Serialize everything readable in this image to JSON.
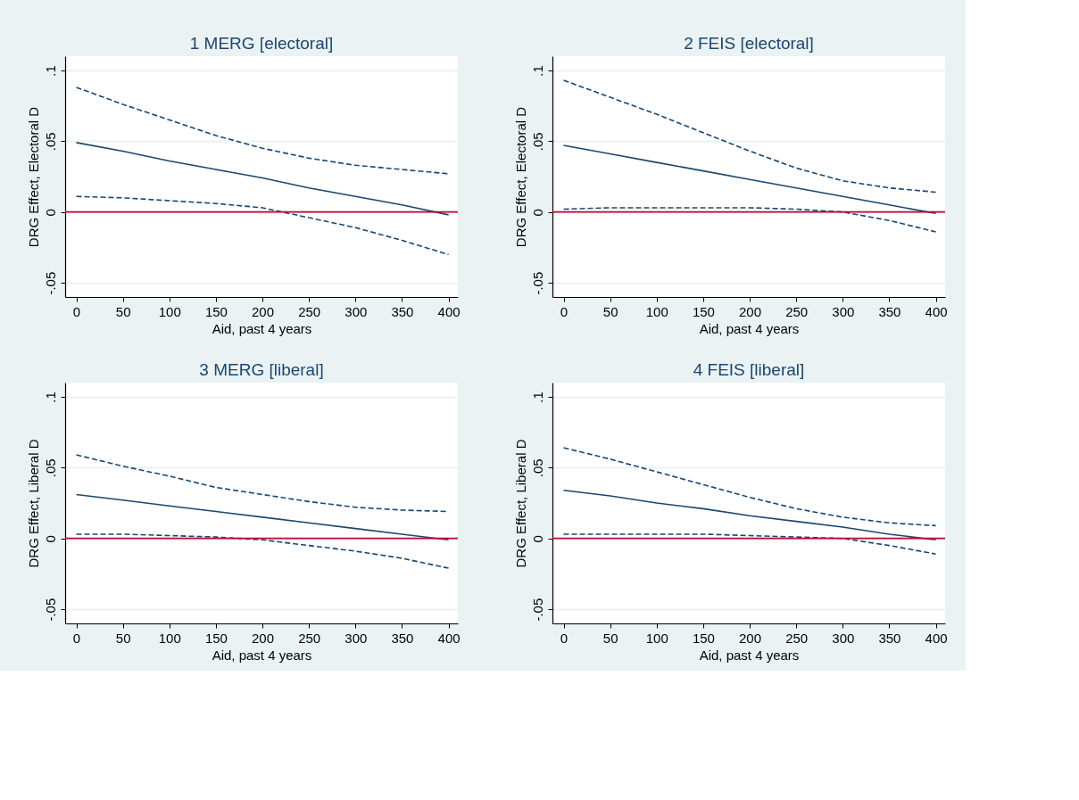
{
  "chart_data": [
    {
      "type": "line",
      "title": "1 MERG [electoral]",
      "xlabel": "Aid, past 4 years",
      "ylabel": "DRG Effect, Electoral D",
      "x": [
        0,
        50,
        100,
        150,
        200,
        250,
        300,
        350,
        400
      ],
      "xlim": [
        -12,
        410
      ],
      "xticks": [
        0,
        50,
        100,
        150,
        200,
        250,
        300,
        350,
        400
      ],
      "ylim": [
        -0.06,
        0.11
      ],
      "yticks": [
        {
          "value": -0.05,
          "label": "-.05"
        },
        {
          "value": 0,
          "label": "0"
        },
        {
          "value": 0.05,
          "label": ".05"
        },
        {
          "value": 0.1,
          "label": ".1"
        }
      ],
      "grid": "y",
      "marker": "none",
      "series": [
        {
          "color": "#1a476f",
          "line_style": "dashed",
          "values": [
            0.088,
            0.076,
            0.065,
            0.054,
            0.045,
            0.038,
            0.033,
            0.03,
            0.027
          ]
        },
        {
          "color": "#1a476f",
          "line_style": "solid",
          "values": [
            0.049,
            0.043,
            0.036,
            0.03,
            0.024,
            0.017,
            0.011,
            0.005,
            -0.002
          ]
        },
        {
          "color": "#1a476f",
          "line_style": "dashed",
          "values": [
            0.011,
            0.01,
            0.008,
            0.006,
            0.003,
            -0.004,
            -0.011,
            -0.02,
            -0.03
          ]
        }
      ],
      "ref_lines": [
        {
          "axis": "y",
          "value": 0,
          "color": "#c10534"
        }
      ]
    },
    {
      "type": "line",
      "title": "2 FEIS [electoral]",
      "xlabel": "Aid, past 4 years",
      "ylabel": "DRG Effect, Electoral D",
      "x": [
        0,
        50,
        100,
        150,
        200,
        250,
        300,
        350,
        400
      ],
      "xlim": [
        -12,
        410
      ],
      "xticks": [
        0,
        50,
        100,
        150,
        200,
        250,
        300,
        350,
        400
      ],
      "ylim": [
        -0.06,
        0.11
      ],
      "yticks": [
        {
          "value": -0.05,
          "label": "-.05"
        },
        {
          "value": 0,
          "label": "0"
        },
        {
          "value": 0.05,
          "label": ".05"
        },
        {
          "value": 0.1,
          "label": ".1"
        }
      ],
      "grid": "y",
      "marker": "none",
      "series": [
        {
          "color": "#1a476f",
          "line_style": "dashed",
          "values": [
            0.093,
            0.081,
            0.069,
            0.056,
            0.043,
            0.031,
            0.022,
            0.017,
            0.014
          ]
        },
        {
          "color": "#1a476f",
          "line_style": "solid",
          "values": [
            0.047,
            0.041,
            0.035,
            0.029,
            0.023,
            0.017,
            0.011,
            0.005,
            -0.001
          ]
        },
        {
          "color": "#1a476f",
          "line_style": "dashed",
          "values": [
            0.002,
            0.003,
            0.003,
            0.003,
            0.003,
            0.002,
            0.0,
            -0.006,
            -0.014
          ]
        }
      ],
      "ref_lines": [
        {
          "axis": "y",
          "value": 0,
          "color": "#c10534"
        }
      ]
    },
    {
      "type": "line",
      "title": "3 MERG [liberal]",
      "xlabel": "Aid, past 4 years",
      "ylabel": "DRG Effect, Liberal D",
      "x": [
        0,
        50,
        100,
        150,
        200,
        250,
        300,
        350,
        400
      ],
      "xlim": [
        -12,
        410
      ],
      "xticks": [
        0,
        50,
        100,
        150,
        200,
        250,
        300,
        350,
        400
      ],
      "ylim": [
        -0.06,
        0.11
      ],
      "yticks": [
        {
          "value": -0.05,
          "label": "-.05"
        },
        {
          "value": 0,
          "label": "0"
        },
        {
          "value": 0.05,
          "label": ".05"
        },
        {
          "value": 0.1,
          "label": ".1"
        }
      ],
      "grid": "y",
      "marker": "none",
      "series": [
        {
          "color": "#1a476f",
          "line_style": "dashed",
          "values": [
            0.059,
            0.051,
            0.044,
            0.036,
            0.031,
            0.026,
            0.022,
            0.02,
            0.019
          ]
        },
        {
          "color": "#1a476f",
          "line_style": "solid",
          "values": [
            0.031,
            0.027,
            0.023,
            0.019,
            0.015,
            0.011,
            0.007,
            0.003,
            -0.001
          ]
        },
        {
          "color": "#1a476f",
          "line_style": "dashed",
          "values": [
            0.003,
            0.003,
            0.002,
            0.001,
            -0.001,
            -0.005,
            -0.009,
            -0.014,
            -0.021
          ]
        }
      ],
      "ref_lines": [
        {
          "axis": "y",
          "value": 0,
          "color": "#c10534"
        }
      ]
    },
    {
      "type": "line",
      "title": "4 FEIS [liberal]",
      "xlabel": "Aid, past 4 years",
      "ylabel": "DRG Effect, Liberal D",
      "x": [
        0,
        50,
        100,
        150,
        200,
        250,
        300,
        350,
        400
      ],
      "xlim": [
        -12,
        410
      ],
      "xticks": [
        0,
        50,
        100,
        150,
        200,
        250,
        300,
        350,
        400
      ],
      "ylim": [
        -0.06,
        0.11
      ],
      "yticks": [
        {
          "value": -0.05,
          "label": "-.05"
        },
        {
          "value": 0,
          "label": "0"
        },
        {
          "value": 0.05,
          "label": ".05"
        },
        {
          "value": 0.1,
          "label": ".1"
        }
      ],
      "grid": "y",
      "marker": "none",
      "series": [
        {
          "color": "#1a476f",
          "line_style": "dashed",
          "values": [
            0.064,
            0.056,
            0.047,
            0.038,
            0.029,
            0.021,
            0.015,
            0.011,
            0.009
          ]
        },
        {
          "color": "#1a476f",
          "line_style": "solid",
          "values": [
            0.034,
            0.03,
            0.025,
            0.021,
            0.016,
            0.012,
            0.008,
            0.003,
            -0.001
          ]
        },
        {
          "color": "#1a476f",
          "line_style": "dashed",
          "values": [
            0.003,
            0.003,
            0.003,
            0.003,
            0.002,
            0.001,
            0.0,
            -0.005,
            -0.011
          ]
        }
      ],
      "ref_lines": [
        {
          "axis": "y",
          "value": 0,
          "color": "#c10534"
        }
      ]
    }
  ]
}
